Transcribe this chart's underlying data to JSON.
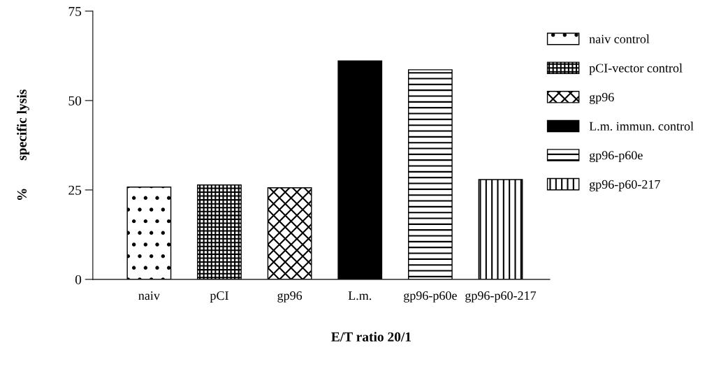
{
  "chart_data": {
    "type": "bar",
    "xlabel": "E/T ratio 20/1",
    "ylabel": "%        specific lysis",
    "categories": [
      "naiv",
      "pCI",
      "gp96",
      "L.m.",
      "gp96-p60e",
      "gp96-p60-217"
    ],
    "series": [
      {
        "name": "naiv control",
        "color": "#000000",
        "values": [
          25.8,
          null,
          null,
          null,
          null,
          null
        ]
      },
      {
        "name": "pCI-vector control",
        "color": "#000000",
        "values": [
          null,
          26.4,
          null,
          null,
          null,
          null
        ]
      },
      {
        "name": "gp96",
        "color": "#000000",
        "values": [
          null,
          null,
          25.6,
          null,
          null,
          null
        ]
      },
      {
        "name": "L.m. immun. control",
        "color": "#000000",
        "values": [
          null,
          null,
          null,
          61.1,
          null,
          null
        ]
      },
      {
        "name": "gp96-p60e",
        "color": "#000000",
        "values": [
          null,
          null,
          null,
          null,
          58.6,
          null
        ]
      },
      {
        "name": "gp96-p60-217",
        "color": "#000000",
        "values": [
          null,
          null,
          null,
          null,
          null,
          27.9
        ]
      }
    ],
    "ylim": [
      0,
      75
    ],
    "yticks": [
      0,
      25,
      50,
      75
    ],
    "grid": false,
    "legend": "right"
  }
}
